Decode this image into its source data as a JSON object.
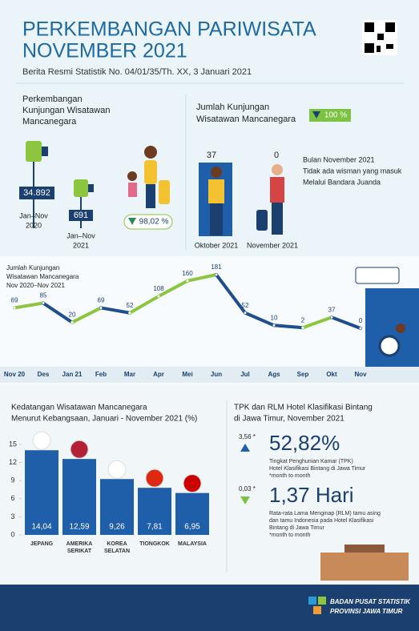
{
  "header": {
    "title_lines": [
      "PERKEMBANGAN PARIWISATA",
      "NOVEMBER 2021"
    ],
    "subtitle": "Berita Resmi Statistik No. 04/01/35/Th. XX, 3 Januari 2021"
  },
  "visits": {
    "title_lines": [
      "Perkembangan",
      "Kunjungan Wisatawan",
      "Mancanegara"
    ],
    "items": [
      {
        "value": "34.892",
        "period": [
          "Jan–Nov",
          "2020"
        ]
      },
      {
        "value": "691",
        "period": [
          "Jan–Nov",
          "2021"
        ]
      }
    ],
    "change": "98,02 %"
  },
  "monthly": {
    "title_lines": [
      "Jumlah Kunjungan",
      "Wisatawan Mancanegara"
    ],
    "change": "100 %",
    "items": [
      {
        "value": "37",
        "label": "Oktober 2021"
      },
      {
        "value": "0",
        "label": "November 2021"
      }
    ],
    "note": [
      "Bulan November 2021",
      "Tidak ada wisman yang masuk",
      "Melalui Bandara Juanda"
    ]
  },
  "chart_data": [
    {
      "type": "line",
      "title_lines": [
        "Jumlah Kunjungan",
        "Wisatawan Mancanegara",
        "Nov 2020–Nov 2021"
      ],
      "categories": [
        "Nov 20",
        "Des",
        "Jan 21",
        "Feb",
        "Mar",
        "Apr",
        "Mei",
        "Jun",
        "Jul",
        "Ags",
        "Sep",
        "Okt",
        "Nov"
      ],
      "values": [
        69,
        85,
        20,
        69,
        52,
        108,
        160,
        181,
        52,
        10,
        2,
        37,
        0
      ],
      "up_color": "#8cc63f",
      "down_color": "#1f4e8c"
    },
    {
      "type": "bar",
      "title_lines": [
        "Kedatangan Wisatawan Mancanegara",
        "Menurut Kebangsaan, Januari - November  2021 (%)"
      ],
      "categories": [
        "JEPANG",
        "AMERIKA SERIKAT",
        "KOREA SELATAN",
        "TIONGKOK",
        "MALAYSIA"
      ],
      "values": [
        14.04,
        12.59,
        9.26,
        7.81,
        6.95
      ],
      "value_labels": [
        "14,04",
        "12,59",
        "9,26",
        "7,81",
        "6,95"
      ],
      "color": "#1f5ea8",
      "ylim": [
        0,
        15
      ],
      "yticks": [
        0,
        3,
        6,
        9,
        12,
        15
      ]
    }
  ],
  "hotel": {
    "title_lines": [
      "TPK dan RLM Hotel Klasifikasi Bintang",
      "di Jawa Timur, November 2021"
    ],
    "items": [
      {
        "change": "3,56 *",
        "value": "52,82%",
        "desc": [
          "Tingkat Penghunian Kamar (TPK)",
          "Hotel Klasifikasi Bintang di Jawa Timur"
        ],
        "note": "*month to month"
      },
      {
        "change": "0,03 *",
        "value": "1,37 Hari",
        "desc": [
          "Rata-rata Lama Menginap (RLM) tamu asing",
          "dan tamu Indonesia pada Hotel Klasifikasi",
          "Bintang di Jawa Timur"
        ],
        "note": "*month to month"
      }
    ]
  },
  "footer": {
    "lines": [
      "BADAN PUSAT STATISTIK",
      "PROVINSI JAWA TIMUR"
    ]
  }
}
